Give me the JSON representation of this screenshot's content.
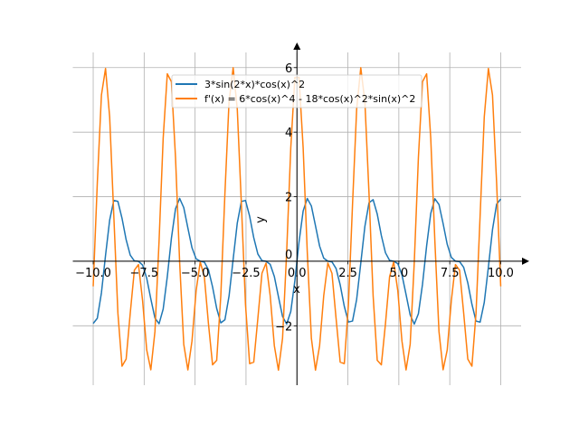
{
  "chart_data": {
    "type": "line",
    "title": "",
    "xlabel": "x",
    "ylabel": "y",
    "xlim": [
      -11,
      11
    ],
    "ylim": [
      -3.84,
      6.47
    ],
    "x_domain": [
      -10,
      10
    ],
    "samples": 100,
    "grid": true,
    "legend_position": "top-center",
    "x_ticks": [
      -10,
      -7.5,
      -5,
      -2.5,
      0,
      2.5,
      5,
      7.5,
      10
    ],
    "x_tick_labels": [
      "−10.0",
      "−7.5",
      "−5.0",
      "−2.5",
      "0.0",
      "2.5",
      "5.0",
      "7.5",
      "10.0"
    ],
    "y_ticks": [
      -2,
      0,
      2,
      4,
      6
    ],
    "y_tick_labels": [
      "−2",
      "0",
      "2",
      "4",
      "6"
    ],
    "series": [
      {
        "name": "3*sin(2*x)*cos(x)^2",
        "color": "#1f77b4",
        "function": "f"
      },
      {
        "name": "f'(x) = 6*cos(x)^4 - 18*cos(x)^2*sin(x)^2",
        "color": "#ff7f0e",
        "function": "df"
      }
    ]
  }
}
